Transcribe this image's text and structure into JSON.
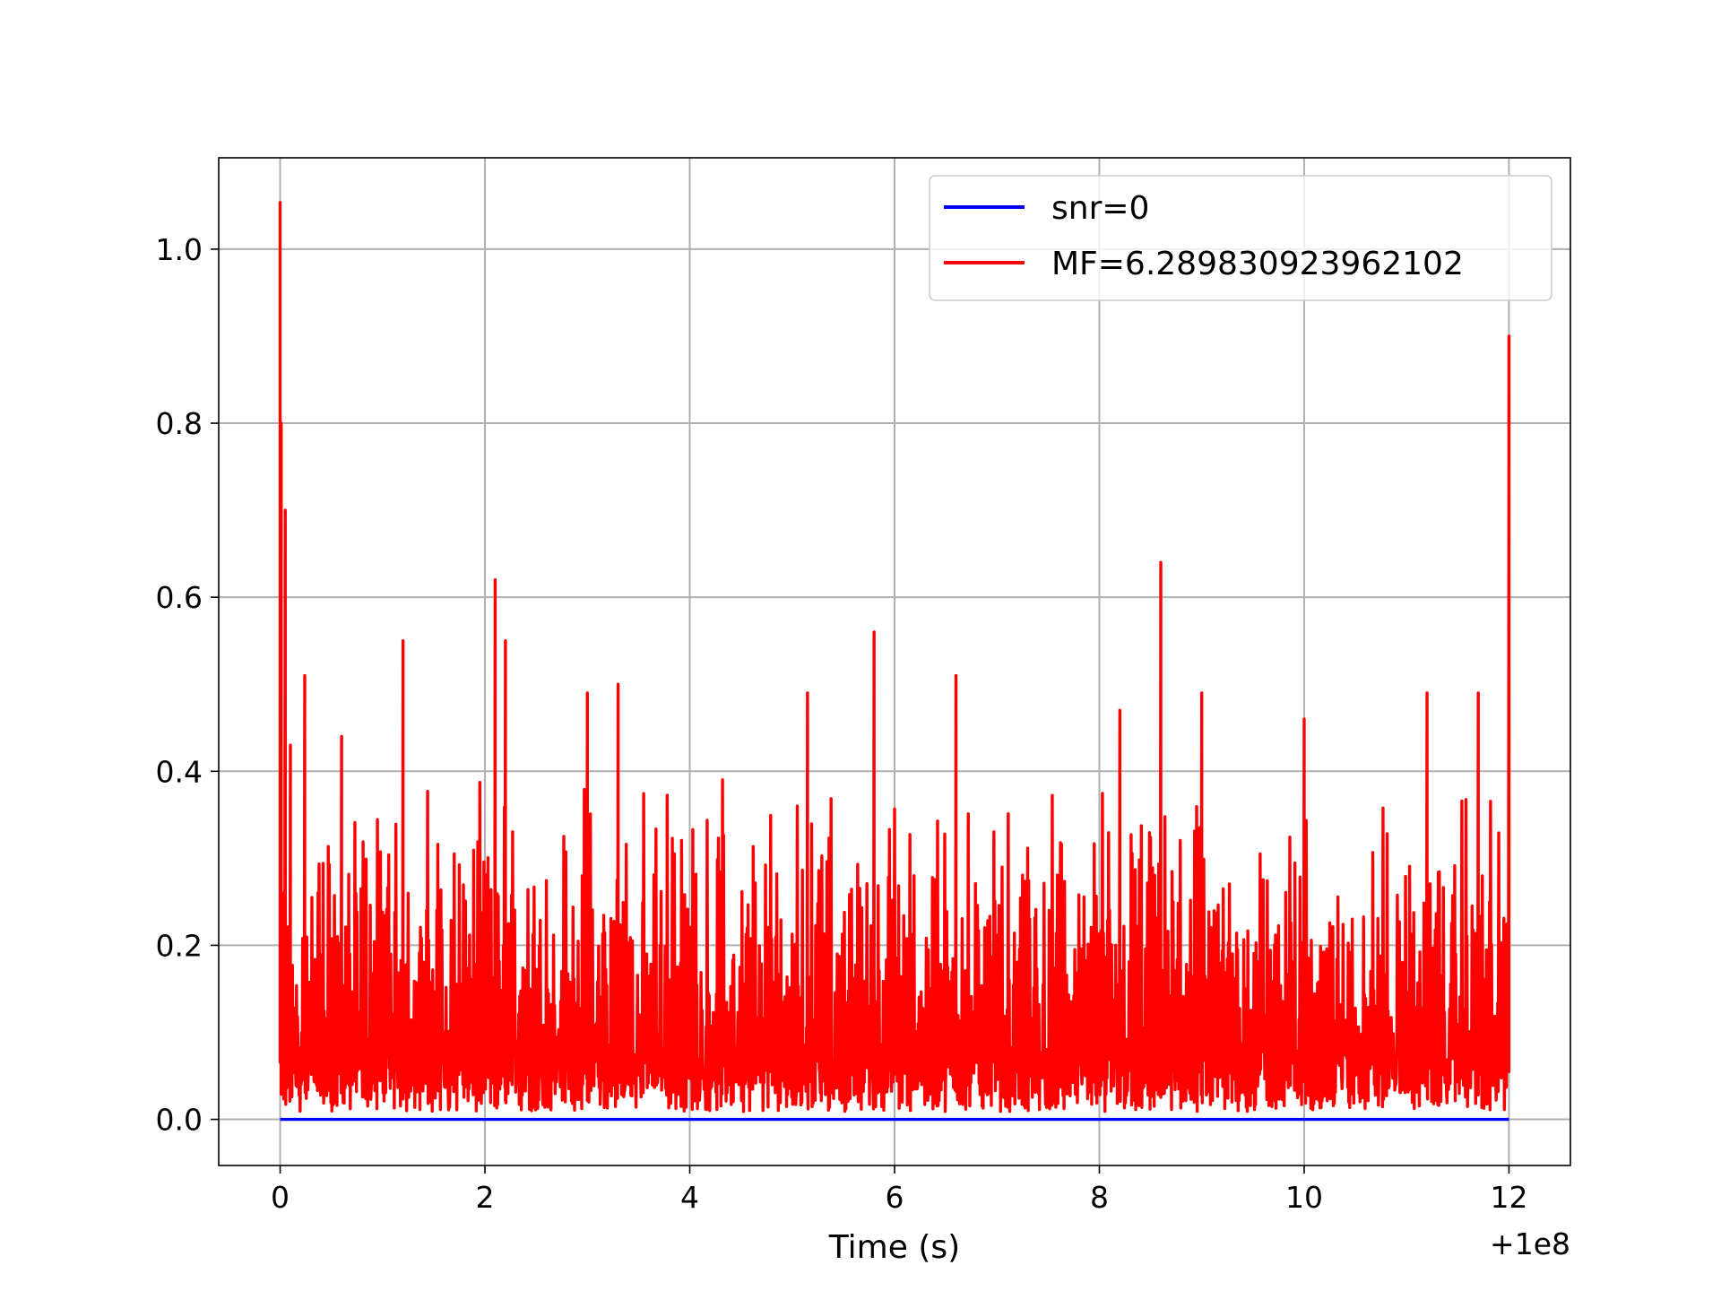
{
  "chart_data": {
    "type": "line",
    "title": "",
    "xlabel": "Time (s)",
    "ylabel": "",
    "x_offset_label": "+1e8",
    "xlim": [
      -0.6,
      12.6
    ],
    "ylim": [
      -0.053,
      1.105
    ],
    "x_ticks": [
      0,
      2,
      4,
      6,
      8,
      10,
      12
    ],
    "x_tick_labels": [
      "0",
      "2",
      "4",
      "6",
      "8",
      "10",
      "12"
    ],
    "y_ticks": [
      0.0,
      0.2,
      0.4,
      0.6,
      0.8,
      1.0
    ],
    "y_tick_labels": [
      "0.0",
      "0.2",
      "0.4",
      "0.6",
      "0.8",
      "1.0"
    ],
    "grid": true,
    "legend_position": "top-right",
    "series": [
      {
        "name": "snr=0",
        "color": "#0000ff",
        "kind": "constant",
        "x_range": [
          0,
          12
        ],
        "value": 0.0
      },
      {
        "name": "MF=6.289830923962102",
        "color": "#ff0000",
        "kind": "noisy",
        "x_range": [
          0,
          12
        ],
        "baseline_min": 0.03,
        "baseline_max": 0.4,
        "peaks": [
          {
            "x": 0.0,
            "y": 1.055
          },
          {
            "x": 0.01,
            "y": 0.8
          },
          {
            "x": 0.05,
            "y": 0.7
          },
          {
            "x": 0.1,
            "y": 0.43
          },
          {
            "x": 0.24,
            "y": 0.51
          },
          {
            "x": 0.6,
            "y": 0.44
          },
          {
            "x": 1.2,
            "y": 0.55
          },
          {
            "x": 2.1,
            "y": 0.62
          },
          {
            "x": 2.2,
            "y": 0.55
          },
          {
            "x": 3.0,
            "y": 0.49
          },
          {
            "x": 3.3,
            "y": 0.5
          },
          {
            "x": 5.15,
            "y": 0.49
          },
          {
            "x": 5.8,
            "y": 0.56
          },
          {
            "x": 6.6,
            "y": 0.51
          },
          {
            "x": 8.2,
            "y": 0.47
          },
          {
            "x": 8.6,
            "y": 0.64
          },
          {
            "x": 9.0,
            "y": 0.49
          },
          {
            "x": 10.0,
            "y": 0.46
          },
          {
            "x": 11.2,
            "y": 0.49
          },
          {
            "x": 11.7,
            "y": 0.49
          },
          {
            "x": 12.0,
            "y": 0.9
          }
        ]
      }
    ]
  }
}
